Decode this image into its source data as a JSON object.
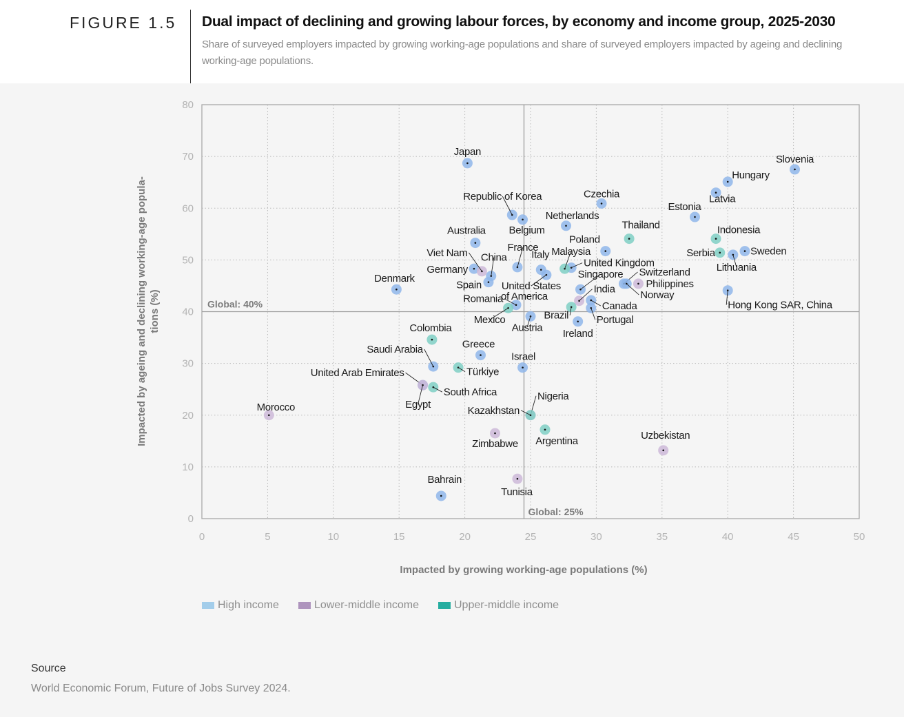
{
  "header": {
    "figure_label": "FIGURE 1.5",
    "title": "Dual impact of declining and growing labour forces, by economy and income group, 2025-2030",
    "subtitle": "Share of surveyed employers impacted by growing working-age populations and share of surveyed employers impacted by ageing and declining working-age populations."
  },
  "legend": [
    {
      "label": "High income",
      "color": "#a3cdea"
    },
    {
      "label": "Lower-middle income",
      "color": "#ae94bd"
    },
    {
      "label": "Upper-middle income",
      "color": "#26ada0"
    }
  ],
  "source": {
    "title": "Source",
    "text": "World Economic Forum, Future of Jobs Survey 2024."
  },
  "chart_data": {
    "type": "scatter",
    "title": "Dual impact of declining and growing labour forces, by economy and income group, 2025-2030",
    "xlabel": "Impacted by growing working-age populations (%)",
    "ylabel": "Impacted by ageing and declining working-age populations (%)",
    "xlim": [
      0,
      50
    ],
    "ylim": [
      0,
      80
    ],
    "xticks": [
      0,
      5,
      10,
      15,
      20,
      25,
      30,
      35,
      40,
      45,
      50
    ],
    "yticks": [
      0,
      10,
      20,
      30,
      40,
      50,
      60,
      70,
      80
    ],
    "grid": true,
    "legend_position": "bottom-left",
    "reference_lines": [
      {
        "axis": "x",
        "value": 24.5,
        "label": "Global: 25%"
      },
      {
        "axis": "y",
        "value": 40,
        "label": "Global: 40%"
      }
    ],
    "group_colors": {
      "High income": "#8fb6ea",
      "Lower-middle income": "#cdb9d8",
      "Upper-middle income": "#7fcfc4"
    },
    "points": [
      {
        "name": "Japan",
        "group": "High income",
        "x": 20.2,
        "y": 68.7
      },
      {
        "name": "Slovenia",
        "group": "High income",
        "x": 45.1,
        "y": 67.5
      },
      {
        "name": "Hungary",
        "group": "High income",
        "x": 40.0,
        "y": 65.1
      },
      {
        "name": "Latvia",
        "group": "High income",
        "x": 39.1,
        "y": 63.0
      },
      {
        "name": "Czechia",
        "group": "High income",
        "x": 30.4,
        "y": 60.9
      },
      {
        "name": "Republic of Korea",
        "group": "High income",
        "x": 23.6,
        "y": 58.7
      },
      {
        "name": "Belgium",
        "group": "High income",
        "x": 24.4,
        "y": 57.8
      },
      {
        "name": "Estonia",
        "group": "High income",
        "x": 37.5,
        "y": 58.3
      },
      {
        "name": "Netherlands",
        "group": "High income",
        "x": 27.7,
        "y": 56.6
      },
      {
        "name": "Thailand",
        "group": "Upper-middle income",
        "x": 32.5,
        "y": 54.1
      },
      {
        "name": "Indonesia",
        "group": "Upper-middle income",
        "x": 39.1,
        "y": 54.1
      },
      {
        "name": "Australia",
        "group": "High income",
        "x": 20.8,
        "y": 53.3
      },
      {
        "name": "Poland",
        "group": "High income",
        "x": 30.7,
        "y": 51.7
      },
      {
        "name": "Sweden",
        "group": "High income",
        "x": 41.3,
        "y": 51.7
      },
      {
        "name": "Serbia",
        "group": "Upper-middle income",
        "x": 39.4,
        "y": 51.4
      },
      {
        "name": "Lithuania",
        "group": "High income",
        "x": 40.4,
        "y": 51.0
      },
      {
        "name": "France",
        "group": "High income",
        "x": 24.0,
        "y": 48.6
      },
      {
        "name": "United Kingdom",
        "group": "High income",
        "x": 28.1,
        "y": 48.5
      },
      {
        "name": "Malaysia",
        "group": "Upper-middle income",
        "x": 27.6,
        "y": 48.3
      },
      {
        "name": "Germany",
        "group": "High income",
        "x": 20.7,
        "y": 48.3
      },
      {
        "name": "Italy",
        "group": "High income",
        "x": 25.8,
        "y": 48.1
      },
      {
        "name": "Viet Nam",
        "group": "Lower-middle income",
        "x": 21.3,
        "y": 47.8
      },
      {
        "name": "United States of America",
        "group": "High income",
        "x": 26.2,
        "y": 47.1
      },
      {
        "name": "China",
        "group": "High income",
        "x": 22.0,
        "y": 46.9
      },
      {
        "name": "Spain",
        "group": "High income",
        "x": 21.8,
        "y": 45.7
      },
      {
        "name": "Switzerland",
        "group": "High income",
        "x": 32.1,
        "y": 45.4
      },
      {
        "name": "Norway",
        "group": "High income",
        "x": 32.3,
        "y": 45.4
      },
      {
        "name": "Philippines",
        "group": "Lower-middle income",
        "x": 33.2,
        "y": 45.4
      },
      {
        "name": "Denmark",
        "group": "High income",
        "x": 14.8,
        "y": 44.3
      },
      {
        "name": "Singapore",
        "group": "High income",
        "x": 28.8,
        "y": 44.3
      },
      {
        "name": "Hong Kong SAR, China",
        "group": "High income",
        "x": 40.0,
        "y": 44.1
      },
      {
        "name": "Canada",
        "group": "High income",
        "x": 29.6,
        "y": 42.2
      },
      {
        "name": "India",
        "group": "Lower-middle income",
        "x": 28.7,
        "y": 42.1
      },
      {
        "name": "Romania",
        "group": "High income",
        "x": 23.9,
        "y": 41.3
      },
      {
        "name": "Brazil",
        "group": "Upper-middle income",
        "x": 28.1,
        "y": 40.9
      },
      {
        "name": "Portugal",
        "group": "High income",
        "x": 29.6,
        "y": 40.7
      },
      {
        "name": "Mexico",
        "group": "Upper-middle income",
        "x": 23.3,
        "y": 40.7
      },
      {
        "name": "Austria",
        "group": "High income",
        "x": 25.0,
        "y": 39.1
      },
      {
        "name": "Ireland",
        "group": "High income",
        "x": 28.6,
        "y": 38.1
      },
      {
        "name": "Colombia",
        "group": "Upper-middle income",
        "x": 17.5,
        "y": 34.6
      },
      {
        "name": "Greece",
        "group": "High income",
        "x": 21.2,
        "y": 31.6
      },
      {
        "name": "Saudi Arabia",
        "group": "High income",
        "x": 17.6,
        "y": 29.4
      },
      {
        "name": "Türkiye",
        "group": "Upper-middle income",
        "x": 19.5,
        "y": 29.2
      },
      {
        "name": "Israel",
        "group": "High income",
        "x": 24.4,
        "y": 29.2
      },
      {
        "name": "United Arab Emirates",
        "group": "High income",
        "x": 16.8,
        "y": 25.8
      },
      {
        "name": "Egypt",
        "group": "Lower-middle income",
        "x": 16.8,
        "y": 25.8
      },
      {
        "name": "South Africa",
        "group": "Upper-middle income",
        "x": 17.6,
        "y": 25.4
      },
      {
        "name": "Morocco",
        "group": "Lower-middle income",
        "x": 5.1,
        "y": 20.0
      },
      {
        "name": "Nigeria",
        "group": "Lower-middle income",
        "x": 25.0,
        "y": 20.0
      },
      {
        "name": "Kazakhstan",
        "group": "Upper-middle income",
        "x": 25.0,
        "y": 20.0
      },
      {
        "name": "Argentina",
        "group": "Upper-middle income",
        "x": 26.1,
        "y": 17.2
      },
      {
        "name": "Zimbabwe",
        "group": "Lower-middle income",
        "x": 22.3,
        "y": 16.5
      },
      {
        "name": "Uzbekistan",
        "group": "Lower-middle income",
        "x": 35.1,
        "y": 13.2
      },
      {
        "name": "Tunisia",
        "group": "Lower-middle income",
        "x": 24.0,
        "y": 7.7
      },
      {
        "name": "Bahrain",
        "group": "High income",
        "x": 18.2,
        "y": 4.4
      }
    ]
  }
}
